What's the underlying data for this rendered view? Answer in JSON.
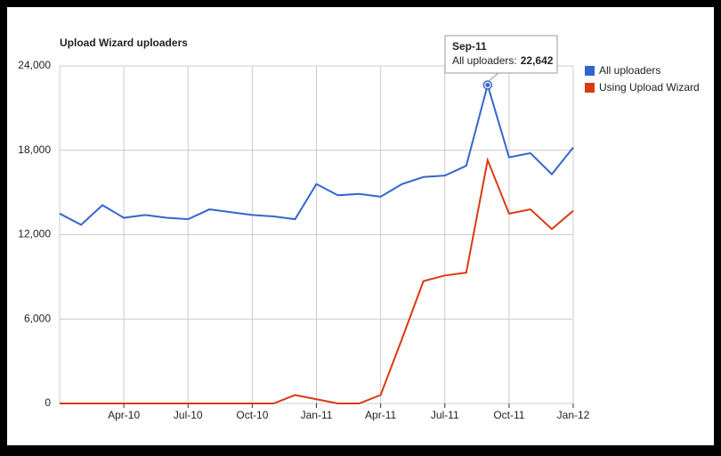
{
  "chart_data": {
    "type": "line",
    "title": "Upload Wizard uploaders",
    "categories": [
      null,
      null,
      null,
      "Apr-10",
      null,
      null,
      "Jul-10",
      null,
      null,
      "Oct-10",
      null,
      null,
      "Jan-11",
      null,
      null,
      "Apr-11",
      null,
      null,
      "Jul-11",
      null,
      null,
      "Oct-11",
      null,
      null,
      "Jan-12"
    ],
    "series": [
      {
        "name": "All uploaders",
        "color": "#3366cc",
        "values": [
          13500,
          12700,
          14100,
          13200,
          13400,
          13200,
          13100,
          13800,
          13600,
          13400,
          13300,
          13100,
          15600,
          14800,
          14900,
          14700,
          15600,
          16100,
          16200,
          16900,
          22642,
          17500,
          17800,
          16300,
          18200
        ]
      },
      {
        "name": "Using Upload Wizard",
        "color": "#dc3912",
        "values": [
          0,
          0,
          0,
          0,
          0,
          0,
          0,
          0,
          0,
          0,
          0,
          600,
          300,
          0,
          0,
          600,
          4600,
          8700,
          9100,
          9300,
          17300,
          13500,
          13800,
          12400,
          13700
        ]
      }
    ],
    "ylim": [
      0,
      24000
    ],
    "yticks": [
      0,
      {
        "value": 6000,
        "label": "6,000"
      },
      {
        "value": 12000,
        "label": "12,000"
      },
      {
        "value": 18000,
        "label": "18,000"
      },
      {
        "value": 24000,
        "label": "24,000"
      }
    ],
    "grid": true,
    "legend": "right",
    "tooltip": {
      "title": "Sep-11",
      "label": "All uploaders:",
      "value": "22,642"
    }
  }
}
